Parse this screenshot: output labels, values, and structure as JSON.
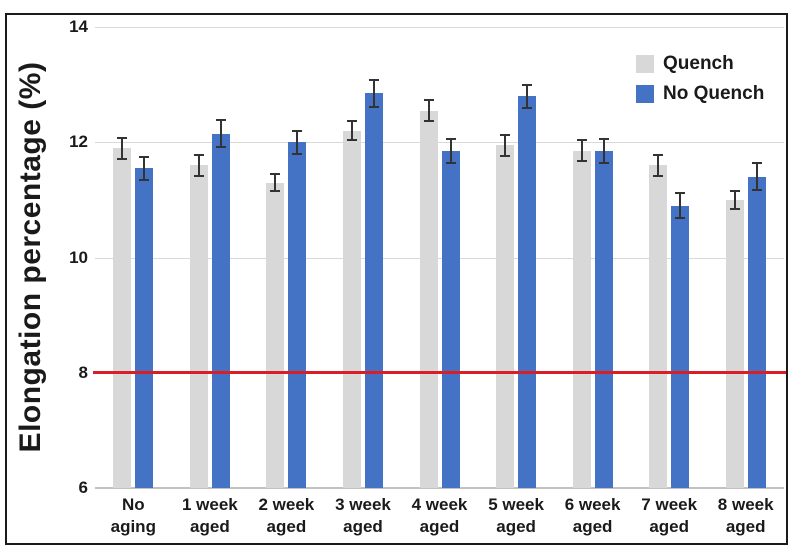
{
  "figure": {
    "background_color": "#ffffff",
    "border_color": "#1b1b1b"
  },
  "chart_data": {
    "type": "bar",
    "title": "",
    "xlabel": "",
    "ylabel": "Elongation percentage (%)",
    "ylim": [
      6,
      14
    ],
    "yticks": [
      6,
      8,
      10,
      12,
      14
    ],
    "grid": "horizontal",
    "gridline_color": "#d9d9d9",
    "legend_position": "top-right",
    "categories": [
      "No aging",
      "1 week aged",
      "2 week aged",
      "3 week aged",
      "4 week aged",
      "5 week aged",
      "6 week aged",
      "7 week aged",
      "8 week aged"
    ],
    "category_label_lines": [
      [
        "No",
        "aging"
      ],
      [
        "1 week",
        "aged"
      ],
      [
        "2 week",
        "aged"
      ],
      [
        "3 week",
        "aged"
      ],
      [
        "4 week",
        "aged"
      ],
      [
        "5 week",
        "aged"
      ],
      [
        "6 week",
        "aged"
      ],
      [
        "7 week",
        "aged"
      ],
      [
        "8 week",
        "aged"
      ]
    ],
    "series": [
      {
        "name": "Quench",
        "color": "#d8d8d8",
        "values": [
          11.9,
          11.6,
          11.3,
          12.2,
          12.55,
          11.95,
          11.85,
          11.6,
          11.0
        ],
        "errors": [
          0.2,
          0.2,
          0.17,
          0.18,
          0.2,
          0.2,
          0.2,
          0.2,
          0.17
        ]
      },
      {
        "name": "No Quench",
        "color": "#4472c4",
        "values": [
          11.55,
          12.15,
          12.0,
          12.85,
          11.85,
          12.8,
          11.85,
          10.9,
          11.4
        ],
        "errors": [
          0.22,
          0.25,
          0.22,
          0.25,
          0.22,
          0.22,
          0.22,
          0.23,
          0.25
        ]
      }
    ],
    "error_bar_color": "#333333",
    "reference_line": {
      "value": 8,
      "color": "#d81f27"
    }
  }
}
